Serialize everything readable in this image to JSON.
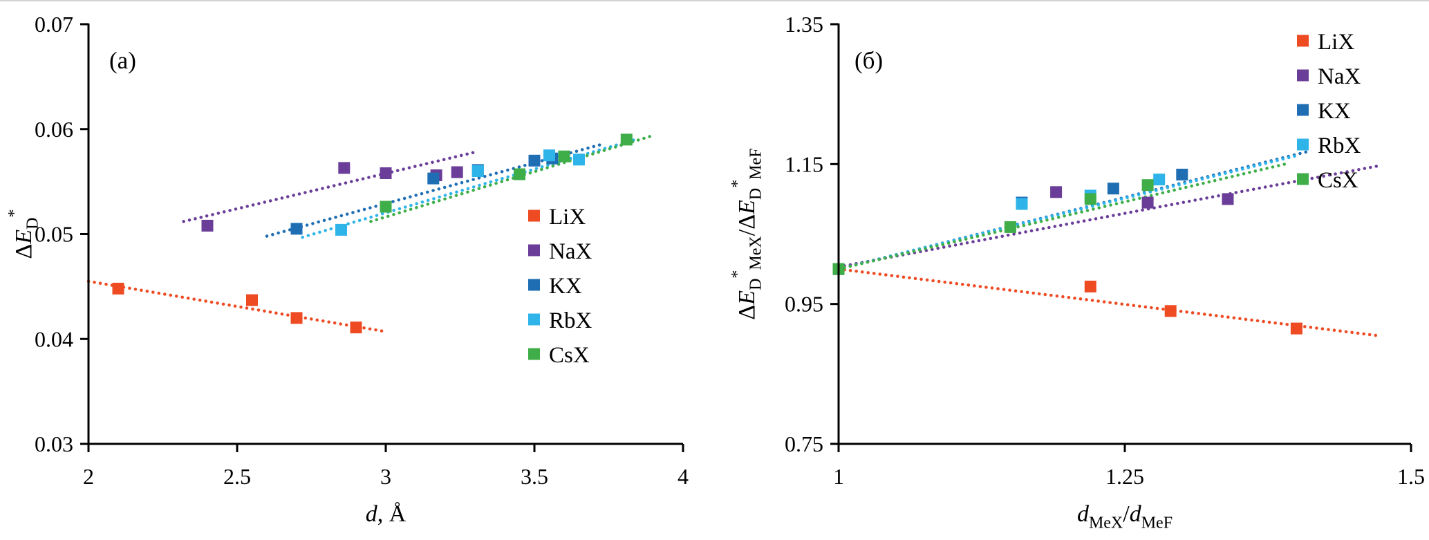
{
  "figure": {
    "background": "#ffffff",
    "top_border_color": "#d2d2d2"
  },
  "chart_data": [
    {
      "type": "scatter",
      "panel_label": "(a)",
      "xlabel_parts": [
        {
          "t": "d",
          "s": "i"
        },
        {
          "t": ", Å",
          "s": "n"
        }
      ],
      "ylabel_parts": [
        {
          "t": "Δ",
          "s": "n"
        },
        {
          "t": "E",
          "s": "i"
        },
        {
          "t": "D",
          "s": "sub"
        },
        {
          "t": "*",
          "s": "sup"
        }
      ],
      "xlim": [
        2,
        4
      ],
      "ylim": [
        0.03,
        0.07
      ],
      "xticks": [
        2,
        2.5,
        3,
        3.5,
        4
      ],
      "xtick_labels": [
        "2",
        "2.5",
        "3",
        "3.5",
        "4"
      ],
      "yticks": [
        0.03,
        0.04,
        0.05,
        0.06,
        0.07
      ],
      "ytick_labels": [
        "0.03",
        "0.04",
        "0.05",
        "0.06",
        "0.07"
      ],
      "grid": false,
      "legend_position": "bottom-right",
      "series": [
        {
          "name": "LiX",
          "color": "#ee4b23",
          "points": [
            [
              2.1,
              0.0448
            ],
            [
              2.55,
              0.0437
            ],
            [
              2.7,
              0.042
            ],
            [
              2.9,
              0.0411
            ]
          ],
          "trend": [
            [
              2.0,
              0.0455
            ],
            [
              3.0,
              0.0407
            ]
          ]
        },
        {
          "name": "NaX",
          "color": "#6a3e98",
          "points": [
            [
              2.4,
              0.0508
            ],
            [
              2.86,
              0.0563
            ],
            [
              3.0,
              0.0558
            ],
            [
              3.17,
              0.0556
            ],
            [
              3.24,
              0.0559
            ]
          ],
          "trend": [
            [
              2.32,
              0.0512
            ],
            [
              3.3,
              0.0578
            ]
          ]
        },
        {
          "name": "KX",
          "color": "#1f6eb4",
          "points": [
            [
              2.7,
              0.0505
            ],
            [
              3.16,
              0.0553
            ],
            [
              3.31,
              0.0561
            ],
            [
              3.5,
              0.057
            ],
            [
              3.56,
              0.0572
            ]
          ],
          "trend": [
            [
              2.6,
              0.0498
            ],
            [
              3.72,
              0.0585
            ]
          ]
        },
        {
          "name": "RbX",
          "color": "#2fb4e9",
          "points": [
            [
              2.85,
              0.0504
            ],
            [
              3.31,
              0.056
            ],
            [
              3.55,
              0.0575
            ],
            [
              3.65,
              0.0571
            ]
          ],
          "trend": [
            [
              2.72,
              0.0497
            ],
            [
              3.85,
              0.0591
            ]
          ]
        },
        {
          "name": "CsX",
          "color": "#3fae49",
          "points": [
            [
              3.0,
              0.0526
            ],
            [
              3.45,
              0.0557
            ],
            [
              3.6,
              0.0574
            ],
            [
              3.81,
              0.059
            ]
          ],
          "trend": [
            [
              2.95,
              0.0512
            ],
            [
              3.9,
              0.0594
            ]
          ]
        }
      ]
    },
    {
      "type": "scatter",
      "panel_label": "(б)",
      "xlabel_parts": [
        {
          "t": "d",
          "s": "i"
        },
        {
          "t": "MeX",
          "s": "sub"
        },
        {
          "t": "/",
          "s": "n"
        },
        {
          "t": "d",
          "s": "i"
        },
        {
          "t": "MeF",
          "s": "sub"
        }
      ],
      "ylabel_parts": [
        {
          "t": "Δ",
          "s": "n"
        },
        {
          "t": "E",
          "s": "i"
        },
        {
          "t": "D",
          "s": "sub"
        },
        {
          "t": "*",
          "s": "sup"
        },
        {
          "t": "MeX",
          "s": "sub"
        },
        {
          "t": "/",
          "s": "n"
        },
        {
          "t": "Δ",
          "s": "n"
        },
        {
          "t": "E",
          "s": "i"
        },
        {
          "t": "D",
          "s": "sub"
        },
        {
          "t": "*",
          "s": "sup"
        },
        {
          "t": "MeF",
          "s": "sub"
        }
      ],
      "xlim": [
        1,
        1.5
      ],
      "ylim": [
        0.75,
        1.35
      ],
      "xticks": [
        1,
        1.25,
        1.5
      ],
      "xtick_labels": [
        "1",
        "1.25",
        "1.5"
      ],
      "yticks": [
        0.75,
        0.95,
        1.15,
        1.35
      ],
      "ytick_labels": [
        "0.75",
        "0.95",
        "1.15",
        "1.35"
      ],
      "grid": false,
      "legend_position": "top-right",
      "series": [
        {
          "name": "LiX",
          "color": "#ee4b23",
          "points": [
            [
              1.0,
              1.0
            ],
            [
              1.22,
              0.975
            ],
            [
              1.29,
              0.94
            ],
            [
              1.4,
              0.915
            ]
          ],
          "trend": [
            [
              1.0,
              1.0
            ],
            [
              1.47,
              0.905
            ]
          ]
        },
        {
          "name": "NaX",
          "color": "#6a3e98",
          "points": [
            [
              1.0,
              1.0
            ],
            [
              1.19,
              1.11
            ],
            [
              1.27,
              1.095
            ],
            [
              1.34,
              1.1
            ]
          ],
          "trend": [
            [
              1.0,
              1.003
            ],
            [
              1.47,
              1.147
            ]
          ]
        },
        {
          "name": "KX",
          "color": "#1f6eb4",
          "points": [
            [
              1.0,
              1.0
            ],
            [
              1.16,
              1.095
            ],
            [
              1.24,
              1.115
            ],
            [
              1.3,
              1.135
            ]
          ],
          "trend": [
            [
              1.0,
              1.0
            ],
            [
              1.41,
              1.168
            ]
          ]
        },
        {
          "name": "RbX",
          "color": "#2fb4e9",
          "points": [
            [
              1.0,
              1.0
            ],
            [
              1.16,
              1.093
            ],
            [
              1.22,
              1.105
            ],
            [
              1.28,
              1.128
            ]
          ],
          "trend": [
            [
              1.0,
              1.0
            ],
            [
              1.4,
              1.162
            ]
          ]
        },
        {
          "name": "CsX",
          "color": "#3fae49",
          "points": [
            [
              1.0,
              1.0
            ],
            [
              1.15,
              1.06
            ],
            [
              1.22,
              1.1
            ],
            [
              1.27,
              1.12
            ]
          ],
          "trend": [
            [
              1.0,
              1.0
            ],
            [
              1.39,
              1.15
            ]
          ]
        }
      ]
    }
  ]
}
